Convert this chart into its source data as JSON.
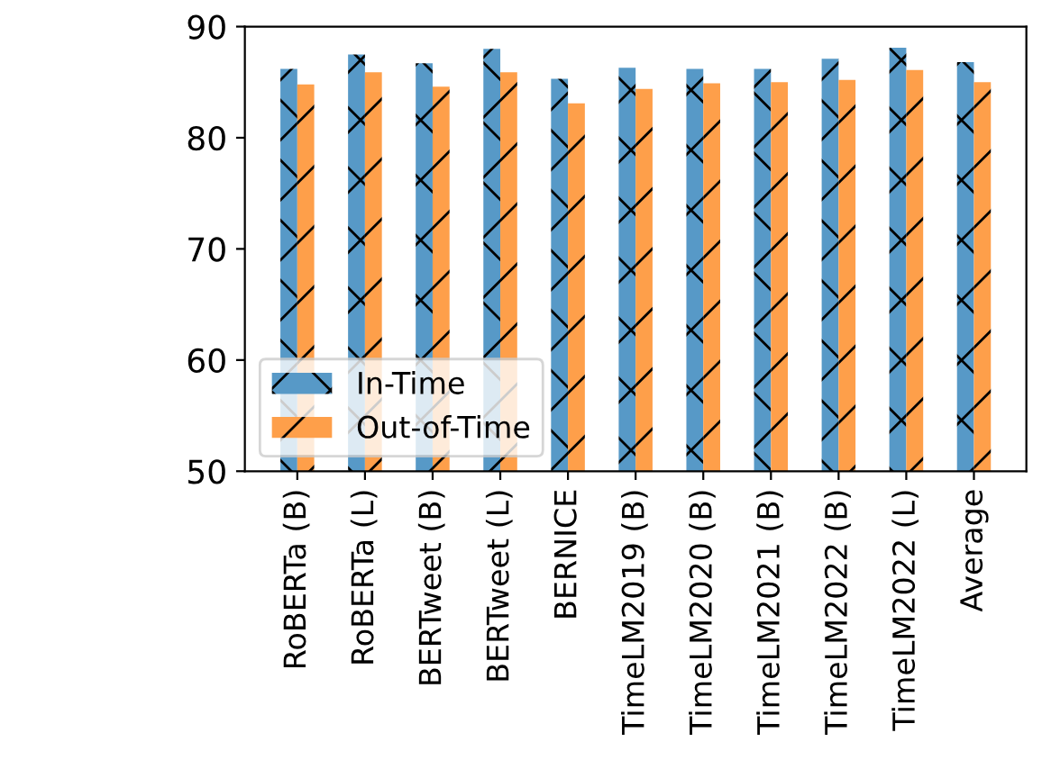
{
  "chart_data": {
    "type": "bar",
    "categories": [
      "RoBERTa (B)",
      "RoBERTa (L)",
      "BERTweet (B)",
      "BERTweet (L)",
      "BERNICE",
      "TimeLM2019 (B)",
      "TimeLM2020 (B)",
      "TimeLM2021 (B)",
      "TimeLM2022 (B)",
      "TimeLM2022 (L)",
      "Average"
    ],
    "series": [
      {
        "name": "In-Time",
        "color": "#5799c7",
        "values": [
          86.2,
          87.5,
          86.7,
          88.0,
          85.3,
          86.3,
          86.2,
          86.2,
          87.1,
          88.1,
          86.8
        ]
      },
      {
        "name": "Out-of-Time",
        "color": "#fe9f4a",
        "values": [
          84.8,
          85.9,
          84.6,
          85.9,
          83.1,
          84.4,
          84.9,
          85.0,
          85.2,
          86.1,
          85.0
        ]
      }
    ],
    "ylim": [
      50,
      90
    ],
    "yticks": [
      50,
      60,
      70,
      80,
      90
    ],
    "legend": "lower left",
    "grid": false
  }
}
